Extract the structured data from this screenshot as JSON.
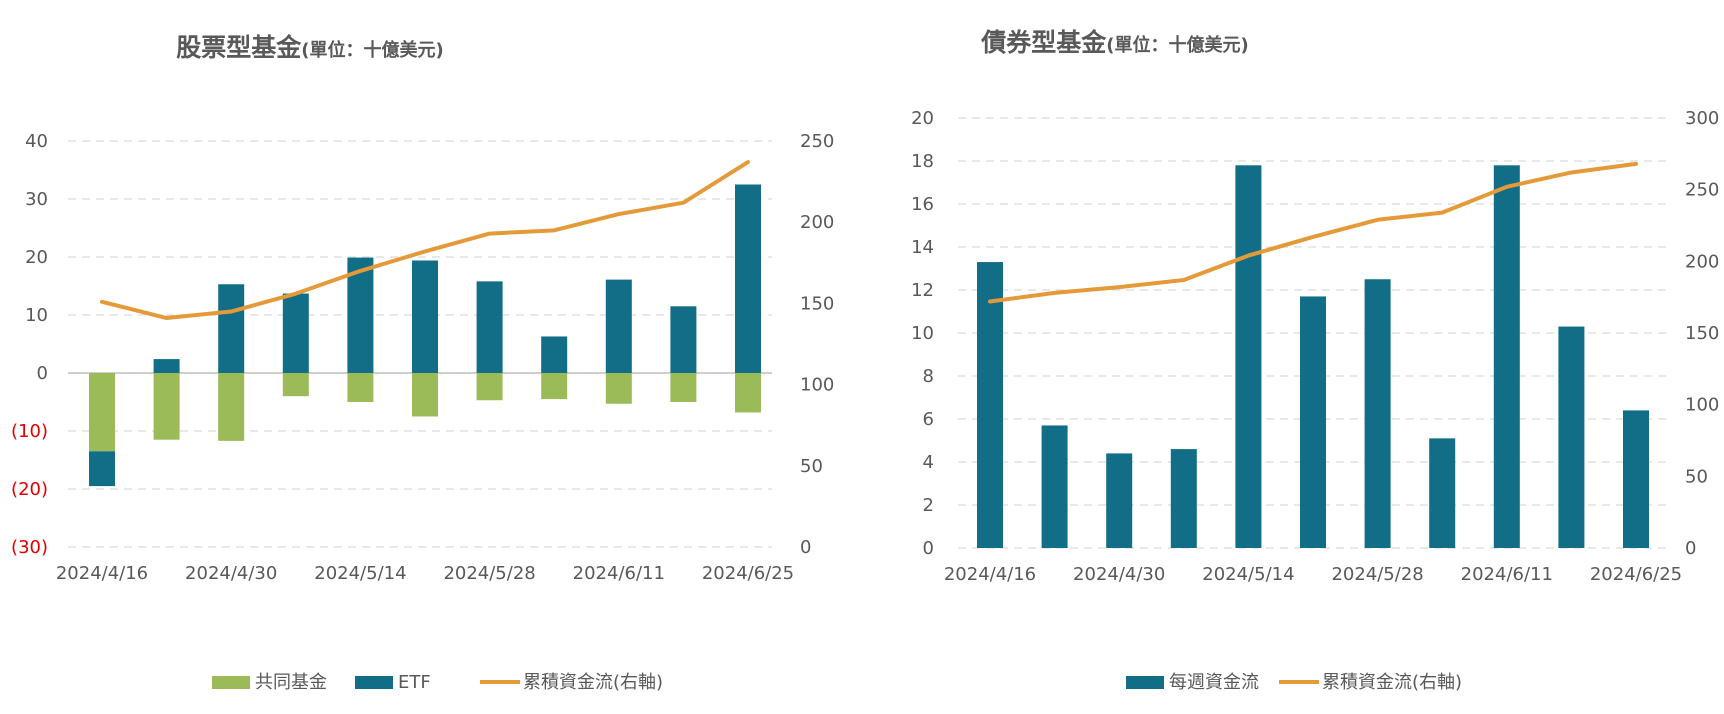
{
  "colors": {
    "mutual": "#9bbb59",
    "etf": "#116e86",
    "weekly": "#116e86",
    "cumulative": "#e59a3a",
    "text": "#595959",
    "negative": "#e00000"
  },
  "chart_data": [
    {
      "type": "bar",
      "title": "股票型基金",
      "unit": "(單位：十億美元)",
      "x_tick_labels": [
        "2024/4/16",
        "2024/4/30",
        "2024/5/14",
        "2024/5/28",
        "2024/6/11",
        "2024/6/25"
      ],
      "categories": [
        "2024/4/16",
        "2024/4/23",
        "2024/4/30",
        "2024/5/7",
        "2024/5/14",
        "2024/5/21",
        "2024/5/28",
        "2024/6/4",
        "2024/6/11",
        "2024/6/18",
        "2024/6/25"
      ],
      "y_ticks": [
        "40",
        "30",
        "20",
        "10",
        "0",
        "(10)",
        "(20)",
        "(30)"
      ],
      "y_tick_values": [
        40,
        30,
        20,
        10,
        0,
        -10,
        -20,
        -30
      ],
      "y2_ticks": [
        "250",
        "200",
        "150",
        "100",
        "50",
        "0"
      ],
      "y2_tick_values": [
        250,
        200,
        150,
        100,
        50,
        0
      ],
      "ylim": [
        -30,
        40
      ],
      "y2lim": [
        0,
        250
      ],
      "stacked": true,
      "grid": true,
      "legend_position": "bottom",
      "series": [
        {
          "name": "共同基金",
          "kind": "bar",
          "color_key": "mutual",
          "values": [
            -13.5,
            -11.5,
            -11.7,
            -4,
            -5,
            -7.5,
            -4.7,
            -4.5,
            -5.3,
            -5,
            -6.8
          ]
        },
        {
          "name": "ETF",
          "kind": "bar",
          "color_key": "etf",
          "values": [
            -6,
            2.4,
            15.3,
            13.7,
            19.9,
            19.4,
            15.8,
            6.3,
            16.1,
            11.5,
            32.5
          ]
        },
        {
          "name": "累積資金流(右軸)",
          "kind": "line",
          "axis": "right",
          "color_key": "cumulative",
          "values": [
            151,
            141,
            145,
            156,
            170,
            182,
            193,
            195,
            205,
            212,
            237
          ]
        }
      ]
    },
    {
      "type": "bar",
      "title": "債券型基金",
      "unit": "(單位：十億美元)",
      "x_tick_labels": [
        "2024/4/16",
        "2024/4/30",
        "2024/5/14",
        "2024/5/28",
        "2024/6/11",
        "2024/6/25"
      ],
      "categories": [
        "2024/4/16",
        "2024/4/23",
        "2024/4/30",
        "2024/5/7",
        "2024/5/14",
        "2024/5/21",
        "2024/5/28",
        "2024/6/4",
        "2024/6/11",
        "2024/6/18",
        "2024/6/25"
      ],
      "y_ticks": [
        "20",
        "18",
        "16",
        "14",
        "12",
        "10",
        "8",
        "6",
        "4",
        "2",
        "0"
      ],
      "y_tick_values": [
        20,
        18,
        16,
        14,
        12,
        10,
        8,
        6,
        4,
        2,
        0
      ],
      "y2_ticks": [
        "300",
        "250",
        "200",
        "150",
        "100",
        "50",
        "0"
      ],
      "y2_tick_values": [
        300,
        250,
        200,
        150,
        100,
        50,
        0
      ],
      "ylim": [
        0,
        20
      ],
      "y2lim": [
        0,
        300
      ],
      "grid": true,
      "legend_position": "bottom",
      "series": [
        {
          "name": "每週資金流",
          "kind": "bar",
          "color_key": "weekly",
          "values": [
            13.3,
            5.7,
            4.4,
            4.6,
            17.8,
            11.7,
            12.5,
            5.1,
            17.8,
            10.3,
            6.4
          ]
        },
        {
          "name": "累積資金流(右軸)",
          "kind": "line",
          "axis": "right",
          "color_key": "cumulative",
          "values": [
            172,
            178,
            182,
            187,
            204,
            217,
            229,
            234,
            252,
            262,
            268
          ]
        }
      ]
    }
  ]
}
